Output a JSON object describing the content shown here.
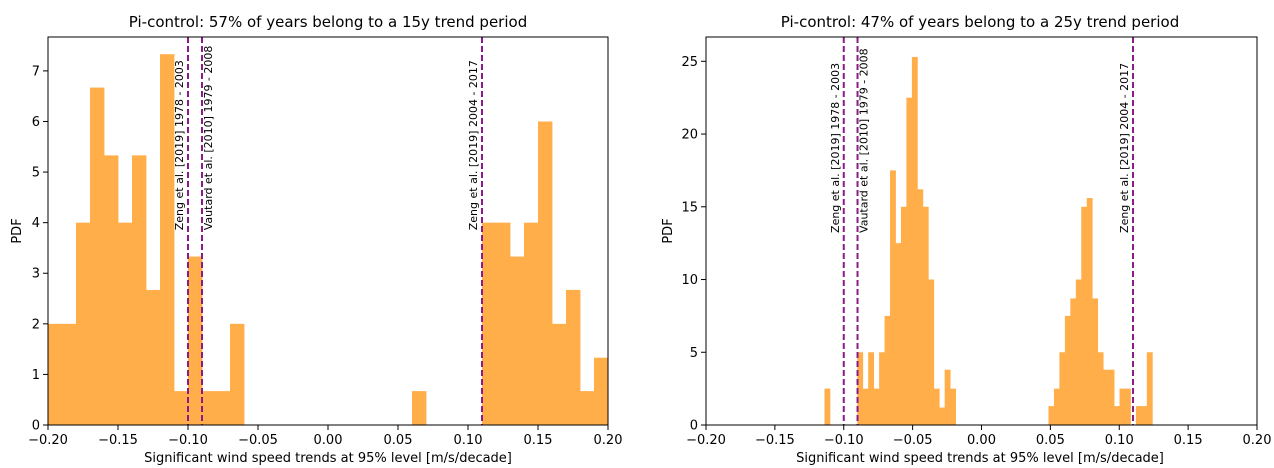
{
  "figure": {
    "background": "#ffffff"
  },
  "chart_data": [
    {
      "type": "bar",
      "title": "Pi-control: 57% of years belong to a 15y trend period",
      "xlabel": "Significant wind speed trends at 95% level [m/s/decade]",
      "ylabel": "PDF",
      "xlim": [
        -0.2,
        0.2
      ],
      "ylim": [
        0,
        7.67
      ],
      "xticks": [
        -0.2,
        -0.15,
        -0.1,
        -0.05,
        0.0,
        0.05,
        0.1,
        0.15,
        0.2
      ],
      "xtick_labels": [
        "−0.20",
        "−0.15",
        "−0.10",
        "−0.05",
        "0.00",
        "0.05",
        "0.10",
        "0.15",
        "0.20"
      ],
      "yticks": [
        0,
        1,
        2,
        3,
        4,
        5,
        6,
        7
      ],
      "ytick_labels": [
        "0",
        "1",
        "2",
        "3",
        "4",
        "5",
        "6",
        "7"
      ],
      "bar_color": "#ffae4a",
      "bin_edges": [
        -0.2,
        0.2
      ],
      "bin_count": 40,
      "values": [
        2.0,
        2.0,
        4.0,
        6.67,
        5.33,
        4.0,
        5.33,
        2.67,
        7.33,
        0.67,
        3.33,
        0.67,
        0.67,
        2.0,
        0.0,
        0.0,
        0.0,
        0.0,
        0.0,
        0.0,
        0.0,
        0.0,
        0.0,
        0.0,
        0.0,
        0.0,
        0.67,
        0.0,
        0.0,
        0.0,
        0.0,
        4.0,
        4.0,
        3.33,
        4.0,
        6.0,
        2.0,
        2.67,
        0.67,
        1.33
      ],
      "partial_first_bin": {
        "x_start": -0.2,
        "x_end": -0.19,
        "value": 2.0
      },
      "reference_lines": [
        {
          "x": -0.1,
          "label": "Zeng et al. [2019] 1978 - 2003",
          "label_side": "left"
        },
        {
          "x": -0.09,
          "label": "Vautard et al. [2010] 1979 - 2008",
          "label_side": "right"
        },
        {
          "x": 0.11,
          "label": "Zeng et al. [2019] 2004 - 2017",
          "label_side": "left"
        }
      ],
      "reference_line_color": "#8b1a8b",
      "reference_label_y": 3.85
    },
    {
      "type": "bar",
      "title": "Pi-control: 47% of years belong to a 25y trend period",
      "xlabel": "Significant wind speed trends at 95% level [m/s/decade]",
      "ylabel": "PDF",
      "xlim": [
        -0.2,
        0.2
      ],
      "ylim": [
        0,
        26.67
      ],
      "xticks": [
        -0.2,
        -0.15,
        -0.1,
        -0.05,
        0.0,
        0.05,
        0.1,
        0.15,
        0.2
      ],
      "xtick_labels": [
        "−0.20",
        "−0.15",
        "−0.10",
        "−0.05",
        "0.00",
        "0.05",
        "0.10",
        "0.15",
        "0.20"
      ],
      "yticks": [
        0,
        5,
        10,
        15,
        20,
        25
      ],
      "ytick_labels": [
        "0",
        "5",
        "10",
        "15",
        "20",
        "25"
      ],
      "bar_color": "#ffae4a",
      "bin_edges": [
        -0.114,
        0.124
      ],
      "bin_count": 60,
      "values": [
        2.5,
        0.0,
        0.0,
        0.0,
        0.0,
        0.0,
        5.0,
        2.5,
        5.0,
        2.5,
        5.0,
        7.5,
        17.5,
        12.5,
        15.0,
        22.5,
        25.3,
        16.2,
        15.0,
        10.0,
        2.5,
        1.2,
        3.8,
        2.5,
        0.0,
        0.0,
        0.0,
        0.0,
        0.0,
        0.0,
        0.0,
        0.0,
        0.0,
        0.0,
        0.0,
        0.0,
        0.0,
        0.0,
        0.0,
        0.0,
        0.0,
        1.3,
        2.5,
        5.0,
        7.5,
        8.7,
        10.0,
        15.0,
        15.6,
        8.7,
        5.0,
        3.8,
        3.8,
        1.3,
        2.5,
        2.5,
        0.0,
        1.3,
        1.3,
        5.0
      ],
      "reference_lines": [
        {
          "x": -0.1,
          "label": "Zeng et al. [2019] 1978 - 2003",
          "label_side": "left"
        },
        {
          "x": -0.09,
          "label": "Vautard et al. [2010] 1979 - 2008",
          "label_side": "right"
        },
        {
          "x": 0.11,
          "label": "Zeng et al. [2019] 2004 - 2017",
          "label_side": "left"
        }
      ],
      "reference_line_color": "#8b1a8b",
      "reference_label_y": 13.2
    }
  ]
}
